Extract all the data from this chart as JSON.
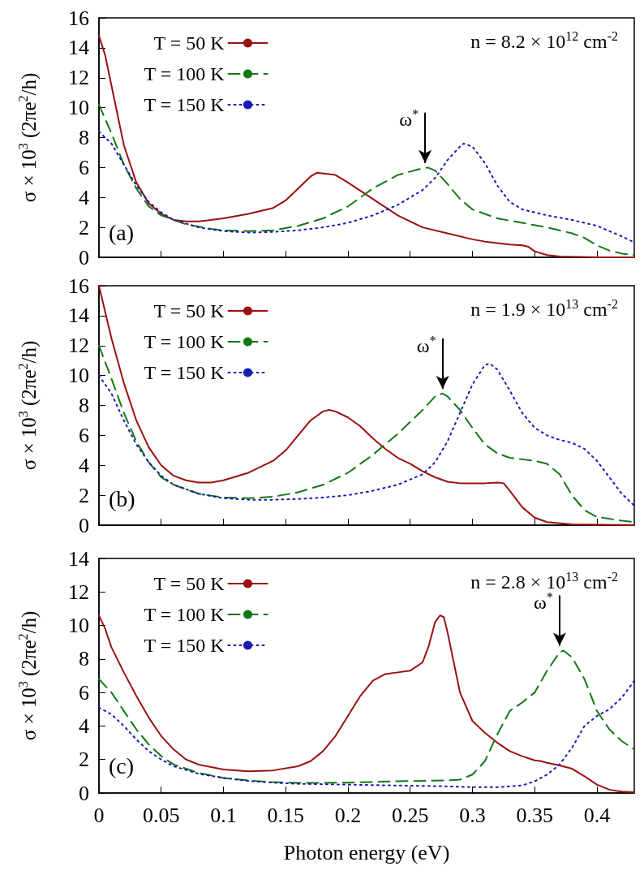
{
  "chart_data": [
    {
      "type": "line",
      "ylabel": "σ × 10$^{3}$ (2πe$^{2}$/h)",
      "xlim": [
        0,
        0.43
      ],
      "xticks": [
        0,
        0.05,
        0.1,
        0.15,
        0.2,
        0.25,
        0.3,
        0.35,
        0.4
      ],
      "ylim": [
        0,
        16
      ],
      "yticks": [
        0,
        2,
        4,
        6,
        8,
        10,
        12,
        14,
        16
      ],
      "tick_labels": "y",
      "legend": "top left",
      "marker": "none",
      "annotations": [
        "n = 8.2 × 10$^{12}$ cm$^{-2}$",
        "(a)",
        {
          "text": "ω$^{*}$",
          "x": 0.262,
          "y": 6.2
        }
      ],
      "series": [
        {
          "name": "T = 50 K",
          "color": "#9b1010",
          "line_style": "solid",
          "x": [
            0,
            0.005,
            0.01,
            0.02,
            0.03,
            0.04,
            0.05,
            0.06,
            0.07,
            0.08,
            0.1,
            0.12,
            0.14,
            0.15,
            0.16,
            0.17,
            0.175,
            0.19,
            0.2,
            0.22,
            0.24,
            0.26,
            0.28,
            0.3,
            0.31,
            0.33,
            0.34,
            0.345,
            0.35,
            0.36,
            0.37,
            0.4,
            0.43
          ],
          "values": [
            14.8,
            13.5,
            11.5,
            7.5,
            5,
            3.6,
            2.9,
            2.5,
            2.4,
            2.4,
            2.6,
            2.9,
            3.3,
            3.8,
            4.6,
            5.4,
            5.65,
            5.5,
            5.0,
            3.9,
            2.8,
            2.0,
            1.6,
            1.2,
            1.05,
            0.85,
            0.8,
            0.7,
            0.4,
            0.15,
            0.05,
            0,
            0
          ]
        },
        {
          "name": "T = 100 K",
          "color": "#147814",
          "line_style": "dashed",
          "x": [
            0,
            0.01,
            0.02,
            0.03,
            0.04,
            0.05,
            0.07,
            0.09,
            0.1,
            0.12,
            0.14,
            0.16,
            0.18,
            0.2,
            0.22,
            0.24,
            0.26,
            0.264,
            0.27,
            0.28,
            0.29,
            0.3,
            0.32,
            0.34,
            0.36,
            0.38,
            0.39,
            0.4,
            0.41,
            0.42,
            0.43
          ],
          "values": [
            10.2,
            8.3,
            6.2,
            4.6,
            3.4,
            2.8,
            2.2,
            1.9,
            1.8,
            1.75,
            1.8,
            2.1,
            2.6,
            3.4,
            4.6,
            5.5,
            5.95,
            6.0,
            5.8,
            4.9,
            3.9,
            3.2,
            2.6,
            2.3,
            2.0,
            1.6,
            1.3,
            0.8,
            0.45,
            0.25,
            0.15
          ]
        },
        {
          "name": "T = 150 K",
          "color": "#1a1ab4",
          "line_style": "dotted",
          "x": [
            0,
            0.01,
            0.02,
            0.03,
            0.04,
            0.05,
            0.06,
            0.08,
            0.1,
            0.12,
            0.14,
            0.16,
            0.18,
            0.2,
            0.22,
            0.24,
            0.26,
            0.27,
            0.28,
            0.29,
            0.293,
            0.3,
            0.31,
            0.32,
            0.33,
            0.34,
            0.36,
            0.38,
            0.4,
            0.42,
            0.43
          ],
          "values": [
            8.4,
            7.6,
            6.2,
            4.8,
            3.7,
            3.0,
            2.5,
            2.0,
            1.75,
            1.65,
            1.7,
            1.8,
            2.0,
            2.3,
            2.8,
            3.5,
            4.5,
            5.3,
            6.5,
            7.4,
            7.6,
            7.4,
            6.3,
            4.8,
            3.7,
            3.2,
            2.8,
            2.5,
            2.1,
            1.4,
            1.0
          ]
        }
      ]
    },
    {
      "type": "line",
      "ylabel": "σ × 10$^{3}$ (2πe$^{2}$/h)",
      "xlim": [
        0,
        0.43
      ],
      "xticks": [
        0,
        0.05,
        0.1,
        0.15,
        0.2,
        0.25,
        0.3,
        0.35,
        0.4
      ],
      "ylim": [
        0,
        16
      ],
      "yticks": [
        0,
        2,
        4,
        6,
        8,
        10,
        12,
        14,
        16
      ],
      "tick_labels": "y",
      "legend": "top left",
      "marker": "none",
      "annotations": [
        "n = 1.9 × 10$^{13}$ cm$^{-2}$",
        "(b)",
        {
          "text": "ω$^{*}$",
          "x": 0.276,
          "y": 9.0
        }
      ],
      "series": [
        {
          "name": "T = 50 K",
          "color": "#9b1010",
          "line_style": "solid",
          "x": [
            0,
            0.01,
            0.02,
            0.03,
            0.04,
            0.05,
            0.06,
            0.07,
            0.08,
            0.09,
            0.1,
            0.12,
            0.14,
            0.15,
            0.16,
            0.17,
            0.18,
            0.185,
            0.19,
            0.2,
            0.21,
            0.22,
            0.23,
            0.24,
            0.25,
            0.26,
            0.27,
            0.28,
            0.29,
            0.3,
            0.31,
            0.32,
            0.325,
            0.33,
            0.34,
            0.35,
            0.36,
            0.38,
            0.43
          ],
          "values": [
            16,
            12.5,
            9.5,
            7.0,
            5.2,
            4.0,
            3.3,
            3.0,
            2.85,
            2.85,
            3.0,
            3.5,
            4.3,
            5.0,
            6.0,
            7.0,
            7.6,
            7.7,
            7.6,
            7.2,
            6.6,
            5.8,
            5.1,
            4.5,
            4.1,
            3.6,
            3.2,
            2.9,
            2.8,
            2.8,
            2.8,
            2.85,
            2.8,
            2.3,
            1.2,
            0.5,
            0.2,
            0.05,
            0
          ]
        },
        {
          "name": "T = 100 K",
          "color": "#147814",
          "line_style": "dashed",
          "x": [
            0,
            0.01,
            0.02,
            0.03,
            0.04,
            0.05,
            0.06,
            0.08,
            0.1,
            0.12,
            0.14,
            0.16,
            0.18,
            0.2,
            0.22,
            0.24,
            0.26,
            0.27,
            0.276,
            0.28,
            0.29,
            0.3,
            0.31,
            0.32,
            0.33,
            0.34,
            0.35,
            0.36,
            0.37,
            0.38,
            0.39,
            0.4,
            0.42,
            0.43
          ],
          "values": [
            12,
            9.8,
            7.5,
            5.6,
            4.2,
            3.2,
            2.7,
            2.1,
            1.85,
            1.8,
            1.9,
            2.2,
            2.7,
            3.5,
            4.7,
            6.1,
            7.7,
            8.6,
            8.8,
            8.6,
            7.7,
            6.5,
            5.4,
            4.8,
            4.5,
            4.4,
            4.3,
            4.1,
            3.4,
            2.0,
            1.0,
            0.55,
            0.3,
            0.2
          ]
        },
        {
          "name": "T = 150 K",
          "color": "#1a1ab4",
          "line_style": "dotted",
          "x": [
            0,
            0.01,
            0.02,
            0.03,
            0.04,
            0.05,
            0.06,
            0.08,
            0.1,
            0.12,
            0.14,
            0.16,
            0.18,
            0.2,
            0.22,
            0.24,
            0.26,
            0.27,
            0.28,
            0.29,
            0.3,
            0.31,
            0.314,
            0.32,
            0.33,
            0.34,
            0.35,
            0.36,
            0.37,
            0.38,
            0.39,
            0.4,
            0.41,
            0.42,
            0.43
          ],
          "values": [
            10.0,
            8.8,
            7.0,
            5.4,
            4.2,
            3.3,
            2.7,
            2.1,
            1.8,
            1.7,
            1.7,
            1.75,
            1.85,
            2.0,
            2.3,
            2.7,
            3.4,
            4.2,
            5.6,
            7.5,
            9.4,
            10.7,
            10.8,
            10.4,
            9.0,
            7.5,
            6.5,
            6.0,
            5.7,
            5.5,
            5.1,
            4.3,
            3.2,
            2.1,
            1.3
          ]
        }
      ]
    },
    {
      "type": "line",
      "xlabel": "Photon energy (eV)",
      "ylabel": "σ × 10$^{3}$ (2πe$^{2}$/h)",
      "xlim": [
        0,
        0.43
      ],
      "xticks": [
        0,
        0.05,
        0.1,
        0.15,
        0.2,
        0.25,
        0.3,
        0.35,
        0.4
      ],
      "ylim": [
        0,
        14
      ],
      "yticks": [
        0,
        2,
        4,
        6,
        8,
        10,
        12,
        14
      ],
      "legend": "top left",
      "marker": "none",
      "annotations": [
        "n = 2.8 × 10$^{13}$ cm$^{-2}$",
        "(c)",
        {
          "text": "ω$^{*}$",
          "x": 0.37,
          "y": 8.7
        }
      ],
      "series": [
        {
          "name": "T = 50 K",
          "color": "#9b1010",
          "line_style": "solid",
          "x": [
            0,
            0.005,
            0.01,
            0.02,
            0.03,
            0.04,
            0.05,
            0.06,
            0.07,
            0.08,
            0.1,
            0.12,
            0.14,
            0.16,
            0.17,
            0.18,
            0.19,
            0.2,
            0.21,
            0.22,
            0.23,
            0.24,
            0.25,
            0.26,
            0.265,
            0.27,
            0.274,
            0.277,
            0.28,
            0.285,
            0.29,
            0.3,
            0.31,
            0.32,
            0.33,
            0.34,
            0.35,
            0.355,
            0.36,
            0.37,
            0.38,
            0.39,
            0.4,
            0.41,
            0.42,
            0.43
          ],
          "values": [
            10.6,
            9.8,
            8.7,
            7.2,
            5.8,
            4.5,
            3.4,
            2.6,
            2.0,
            1.7,
            1.4,
            1.3,
            1.35,
            1.6,
            1.9,
            2.5,
            3.4,
            4.6,
            5.8,
            6.7,
            7.1,
            7.2,
            7.3,
            7.8,
            8.8,
            10.2,
            10.6,
            10.5,
            9.6,
            7.8,
            6.0,
            4.3,
            3.6,
            3.0,
            2.5,
            2.2,
            1.95,
            1.9,
            1.8,
            1.65,
            1.45,
            1.0,
            0.5,
            0.2,
            0.08,
            0.05
          ]
        },
        {
          "name": "T = 100 K",
          "color": "#147814",
          "line_style": "dashed",
          "x": [
            0,
            0.01,
            0.02,
            0.03,
            0.04,
            0.05,
            0.06,
            0.08,
            0.1,
            0.12,
            0.14,
            0.16,
            0.2,
            0.24,
            0.28,
            0.29,
            0.3,
            0.31,
            0.32,
            0.33,
            0.34,
            0.35,
            0.36,
            0.37,
            0.373,
            0.38,
            0.39,
            0.4,
            0.41,
            0.42,
            0.43
          ],
          "values": [
            6.8,
            6.0,
            4.9,
            3.8,
            2.9,
            2.2,
            1.7,
            1.2,
            0.9,
            0.75,
            0.65,
            0.6,
            0.62,
            0.7,
            0.75,
            0.8,
            1.1,
            1.9,
            3.5,
            4.9,
            5.4,
            6.0,
            7.3,
            8.4,
            8.5,
            8.1,
            6.8,
            4.9,
            3.8,
            3.1,
            2.6
          ]
        },
        {
          "name": "T = 150 K",
          "color": "#1a1ab4",
          "line_style": "dotted",
          "x": [
            0,
            0.01,
            0.02,
            0.03,
            0.04,
            0.05,
            0.06,
            0.08,
            0.1,
            0.12,
            0.14,
            0.16,
            0.2,
            0.24,
            0.28,
            0.3,
            0.32,
            0.34,
            0.35,
            0.36,
            0.37,
            0.38,
            0.39,
            0.4,
            0.41,
            0.42,
            0.43
          ],
          "values": [
            5.1,
            4.7,
            4.0,
            3.2,
            2.5,
            2.0,
            1.6,
            1.15,
            0.9,
            0.72,
            0.62,
            0.55,
            0.5,
            0.45,
            0.4,
            0.35,
            0.35,
            0.45,
            0.7,
            1.1,
            1.7,
            2.7,
            4.0,
            4.6,
            5.0,
            5.7,
            6.7
          ]
        }
      ]
    }
  ]
}
